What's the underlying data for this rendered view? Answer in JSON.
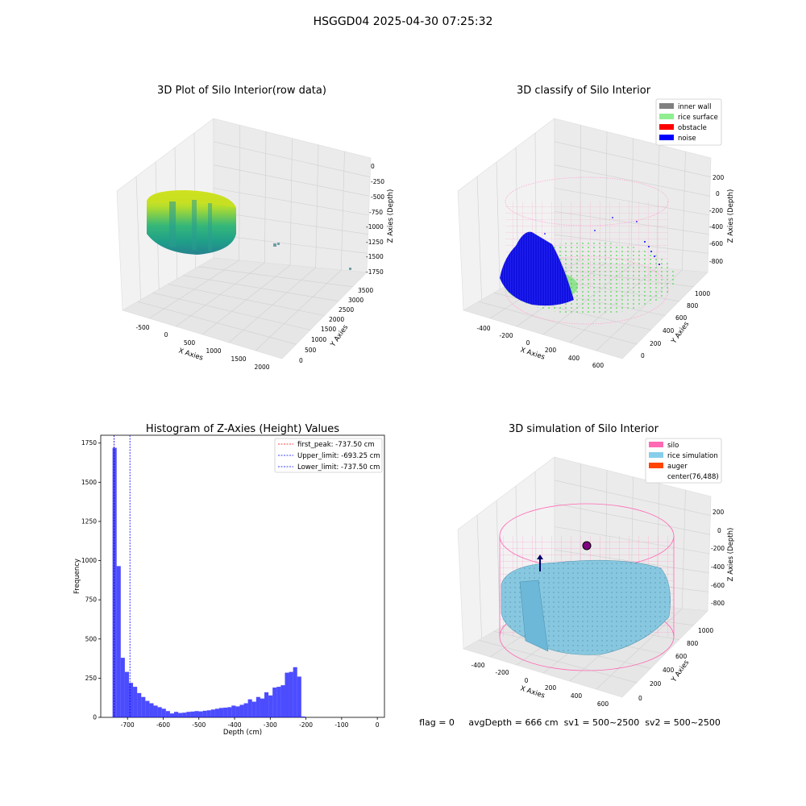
{
  "figure_title": "HSGGD04 2025-04-30 07:25:32",
  "status_line": "flag = 0     avgDepth = 666 cm  sv1 = 500~2500  sv2 = 500~2500",
  "colors": {
    "inner_wall": "#808080",
    "rice_surface": "#90ee90",
    "obstacle": "#ff0000",
    "noise": "#0000ff",
    "silo": "#ff69b4",
    "rice_simulation": "#87ceeb",
    "auger": "#ff4500",
    "hist_bar": "#0000ff",
    "first_peak": "#ff0000",
    "limit_line": "#0000ff"
  },
  "chart_data": [
    {
      "type": "scatter",
      "title": "3D Plot of Silo Interior(row data)",
      "xlabel": "X Axies",
      "ylabel": "Y Axies",
      "zlabel": "Z Axies (Depth)",
      "x_ticks": [
        "-500",
        "0",
        "500",
        "1000",
        "1500",
        "2000"
      ],
      "y_ticks": [
        "0",
        "500",
        "1000",
        "1500",
        "2000",
        "2500",
        "3000",
        "3500"
      ],
      "z_ticks": [
        "0",
        "-250",
        "-500",
        "-750",
        "-1000",
        "-1250",
        "-1500",
        "-1750"
      ],
      "colormap": "viridis"
    },
    {
      "type": "scatter",
      "title": "3D classify of Silo Interior",
      "xlabel": "X Axies",
      "ylabel": "Y Axies",
      "zlabel": "Z Axies (Depth)",
      "x_ticks": [
        "-400",
        "-200",
        "0",
        "200",
        "400",
        "600"
      ],
      "y_ticks": [
        "0",
        "200",
        "400",
        "600",
        "800",
        "1000"
      ],
      "z_ticks": [
        "200",
        "0",
        "-200",
        "-400",
        "-600",
        "-800"
      ],
      "legend": [
        "inner wall",
        "rice surface",
        "obstacle",
        "noise"
      ],
      "legend_position": "top-right"
    },
    {
      "type": "bar",
      "title": "Histogram of Z-Axies (Height) Values",
      "xlabel": "Depth (cm)",
      "ylabel": "Frequency",
      "xlim": [
        -775,
        20
      ],
      "ylim": [
        0,
        1800
      ],
      "x_ticks": [
        "-700",
        "-600",
        "-500",
        "-400",
        "-300",
        "-200",
        "-100",
        "0"
      ],
      "y_ticks": [
        "0",
        "250",
        "500",
        "750",
        "1000",
        "1250",
        "1500",
        "1750"
      ],
      "bin_start": -742,
      "bin_width": 11.5,
      "values": [
        1720,
        965,
        380,
        290,
        220,
        195,
        155,
        130,
        105,
        90,
        75,
        65,
        55,
        40,
        25,
        35,
        28,
        30,
        35,
        37,
        40,
        38,
        42,
        45,
        50,
        55,
        60,
        62,
        65,
        75,
        70,
        80,
        90,
        115,
        100,
        130,
        120,
        160,
        140,
        190,
        195,
        205,
        285,
        290,
        320,
        260,
        5
      ],
      "lines": [
        {
          "label": "first_peak: -737.50 cm",
          "x": -737.5,
          "style": "dashed"
        },
        {
          "label": "Upper_limit: -693.25 cm",
          "x": -693.25,
          "style": "dashed"
        },
        {
          "label": "Lower_limit: -737.50 cm",
          "x": -737.5,
          "style": "dashed"
        }
      ],
      "legend_position": "top-right"
    },
    {
      "type": "scatter",
      "title": "3D simulation of Silo Interior",
      "xlabel": "X Axies",
      "ylabel": "Y Axies",
      "zlabel": "Z Axies (Depth)",
      "x_ticks": [
        "-400",
        "-200",
        "0",
        "200",
        "400",
        "600"
      ],
      "y_ticks": [
        "0",
        "200",
        "400",
        "600",
        "800",
        "1000"
      ],
      "z_ticks": [
        "200",
        "0",
        "-200",
        "-400",
        "-600",
        "-800"
      ],
      "legend": [
        "silo",
        "rice simulation",
        "auger",
        "center(76,488)"
      ],
      "legend_position": "top-right"
    }
  ]
}
